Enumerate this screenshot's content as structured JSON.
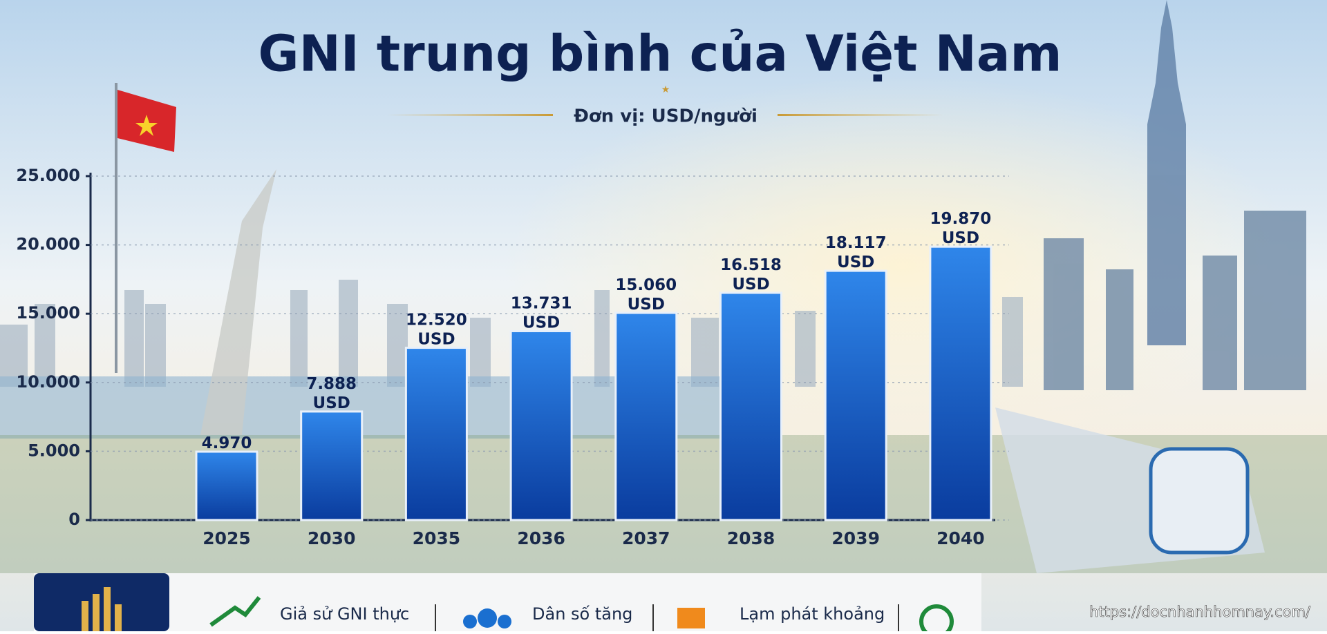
{
  "chart_data": {
    "type": "bar",
    "title": "GNI trung bình của Việt Nam",
    "subtitle": "Đơn vị: USD/người",
    "categories": [
      "2025",
      "2030",
      "2035",
      "2036",
      "2037",
      "2038",
      "2039",
      "2040"
    ],
    "values": [
      4970,
      7888,
      12520,
      13731,
      15060,
      16518,
      18117,
      19870
    ],
    "value_labels": [
      "4.970",
      "7.888 USD",
      "12.520 USD",
      "13.731 USD",
      "15.060 USD",
      "16.518 USD",
      "18.117 USD",
      "19.870 USD"
    ],
    "color": "#1460d0",
    "ylim": [
      0,
      25000
    ],
    "yticks": [
      0,
      {
        "value": 5000,
        "label": "5.000"
      },
      {
        "value": 10000,
        "label": "10.000"
      },
      {
        "value": 15000,
        "label": "15.000"
      },
      {
        "value": 20000,
        "label": "20.000"
      },
      {
        "value": 25000,
        "label": "25.000"
      }
    ],
    "grid": true,
    "notes": [
      "Giả sử GNI thực",
      "Dân số tăng",
      "Lạm phát khoảng"
    ],
    "watermark": "https://docnhanhhomnay.com/"
  }
}
